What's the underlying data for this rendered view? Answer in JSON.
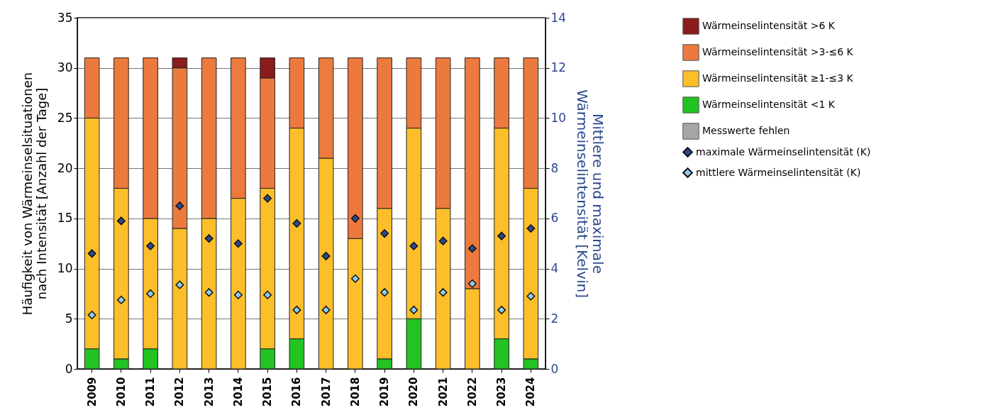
{
  "chart_data": {
    "type": "bar",
    "stacked": true,
    "categories": [
      "2009",
      "2010",
      "2011",
      "2012",
      "2013",
      "2014",
      "2015",
      "2016",
      "2017",
      "2018",
      "2019",
      "2020",
      "2021",
      "2022",
      "2023",
      "2024"
    ],
    "ylabel": "Häufigkeit von Wärmeinselsituationen\nnach Intensität [Anzahl der Tage]",
    "y2label": "Mittlere und maximale\nWärmeinselintensität [Kelvin]",
    "ylim": [
      0,
      35
    ],
    "yticks": [
      0,
      5,
      10,
      15,
      20,
      25,
      30,
      35
    ],
    "y2lim": [
      0,
      14
    ],
    "y2ticks": [
      0,
      2,
      4,
      6,
      8,
      10,
      12,
      14
    ],
    "grid": "y",
    "legend": "right",
    "series": [
      {
        "name": "Messwerte fehlen",
        "color": "#a6a6a6",
        "values": [
          0,
          0,
          0,
          0,
          0,
          0,
          0,
          0,
          0,
          0,
          0,
          0,
          0,
          0,
          0,
          0
        ]
      },
      {
        "name": "Wärmeinselintensität <1 K",
        "color": "#22c322",
        "values": [
          2,
          1,
          2,
          0,
          0,
          0,
          2,
          3,
          0,
          0,
          1,
          5,
          0,
          0,
          3,
          1
        ]
      },
      {
        "name": "Wärmeinselintensität ≥1-≤3 K",
        "color": "#fcbf2a",
        "values": [
          23,
          17,
          13,
          14,
          15,
          17,
          16,
          21,
          21,
          13,
          15,
          19,
          16,
          8,
          21,
          17
        ]
      },
      {
        "name": "Wärmeinselintensität >3-≤6 K",
        "color": "#ec7a3e",
        "values": [
          6,
          13,
          16,
          16,
          16,
          14,
          11,
          7,
          10,
          18,
          15,
          7,
          15,
          23,
          7,
          13
        ]
      },
      {
        "name": "Wärmeinselintensität >6 K",
        "color": "#8b1c1c",
        "values": [
          0,
          0,
          0,
          1,
          0,
          0,
          2,
          0,
          0,
          0,
          0,
          0,
          0,
          0,
          0,
          0
        ]
      },
      {
        "name": "maximale Wärmeinselintensität (K)",
        "type": "scatter",
        "axis": "y2",
        "marker": "diamond",
        "color": "#2c4a8c",
        "values": [
          4.6,
          5.9,
          4.9,
          6.5,
          5.2,
          5.0,
          6.8,
          5.8,
          4.5,
          6.0,
          5.4,
          4.9,
          5.1,
          4.8,
          5.3,
          5.6
        ]
      },
      {
        "name": "mittlere Wärmeinselintensität (K)",
        "type": "scatter",
        "axis": "y2",
        "marker": "diamond",
        "color": "#8fcdf0",
        "values": [
          2.15,
          2.75,
          3.0,
          3.35,
          3.05,
          2.95,
          2.95,
          2.35,
          2.35,
          3.6,
          3.05,
          2.35,
          3.05,
          3.4,
          2.35,
          2.9
        ]
      }
    ]
  }
}
